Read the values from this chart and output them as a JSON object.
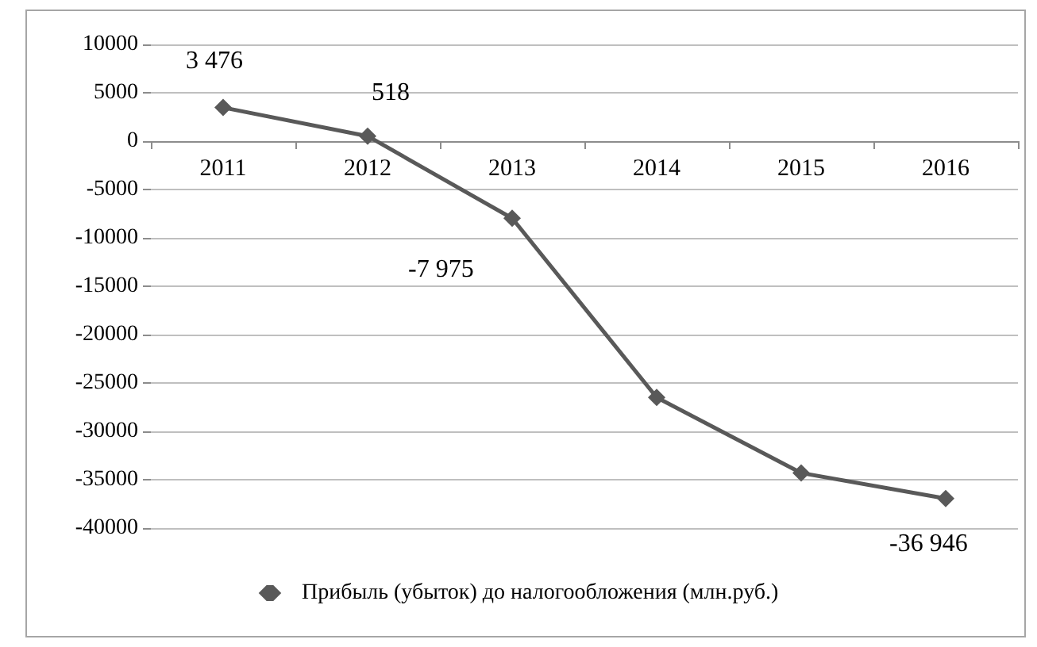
{
  "chart_data": {
    "type": "line",
    "categories": [
      "2011",
      "2012",
      "2013",
      "2014",
      "2015",
      "2016"
    ],
    "series": [
      {
        "name": "Прибыль (убыток) до налогообложения (млн.руб.)",
        "color": "#595959",
        "values": [
          3476,
          518,
          -7975,
          -26500,
          -34300,
          -36946
        ],
        "value_labels": [
          "3 476",
          "518",
          "-7 975",
          null,
          null,
          "-36 946"
        ]
      }
    ],
    "ylim": [
      -40000,
      10000
    ],
    "yticks": [
      -40000,
      -35000,
      -30000,
      -25000,
      -20000,
      -15000,
      -10000,
      -5000,
      0,
      5000,
      10000
    ],
    "grid": "y",
    "legend": "bottom",
    "marker": "diamond",
    "line_style": "solid"
  }
}
